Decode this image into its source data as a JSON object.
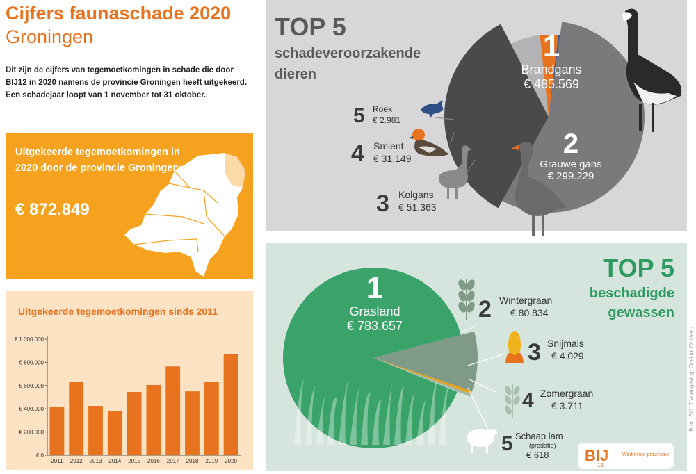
{
  "header": {
    "title": "Cijfers faunaschade 2020",
    "subtitle": "Groningen",
    "intro": "Dit zijn de cijfers van tegemoetkomingen in schade die door BIJ12 in 2020 namens de provincie Groningen heeft uitgekeerd. Een schadejaar loopt van 1 november tot 31 oktober."
  },
  "total_box": {
    "label": "Uitgekeerde tegemoetkomingen in 2020 door de provincie Groningen:",
    "amount": "€ 872.849"
  },
  "colors": {
    "orange": "#f6a21e",
    "bar_orange": "#e8731f",
    "gray_panel": "#d7d7d9",
    "green_panel": "#d5e5dd",
    "green": "#2e9a60"
  },
  "animals": {
    "title": "TOP 5",
    "subtitle_line1": "schadeveroorzakende",
    "subtitle_line2": "dieren",
    "items": [
      {
        "rank": "1",
        "name": "Brandgans",
        "value": "€ 485.569"
      },
      {
        "rank": "2",
        "name": "Grauwe gans",
        "value": "€ 299.229"
      },
      {
        "rank": "3",
        "name": "Kolgans",
        "value": "€ 51.363"
      },
      {
        "rank": "4",
        "name": "Smient",
        "value": "€ 31.149"
      },
      {
        "rank": "5",
        "name": "Roek",
        "value": "€ 2.981"
      }
    ]
  },
  "crops": {
    "title": "TOP 5",
    "subtitle_line1": "beschadigde",
    "subtitle_line2": "gewassen",
    "items": [
      {
        "rank": "1",
        "name": "Grasland",
        "value": "€ 783.657"
      },
      {
        "rank": "2",
        "name": "Wintergraan",
        "value": "€ 80.834"
      },
      {
        "rank": "3",
        "name": "Snijmais",
        "value": "€ 4.029"
      },
      {
        "rank": "4",
        "name": "Zomergraan",
        "value": "€ 3.711"
      },
      {
        "rank": "5",
        "name": "Schaap lam",
        "note": "(predatie)",
        "value": "€ 618"
      }
    ]
  },
  "logo": {
    "text": "BIJ",
    "sub": "12",
    "tagline": "Werkt voor provincies"
  },
  "credit": "Bron: BIJ12   Vormgeving: Ocel tot Ontwerp",
  "bar_chart_title": "Uitgekeerde tegemoetkomingen sinds 2011",
  "chart_data": [
    {
      "type": "bar",
      "title": "Uitgekeerde tegemoetkomingen sinds 2011",
      "categories": [
        "2011",
        "2012",
        "2013",
        "2014",
        "2015",
        "2016",
        "2017",
        "2018",
        "2019",
        "2020"
      ],
      "values": [
        415000,
        630000,
        425000,
        380000,
        545000,
        605000,
        765000,
        550000,
        630000,
        872849
      ],
      "ylim": [
        0,
        1000000
      ],
      "yticks": [
        "€ 0",
        "€ 200.000",
        "€ 400.000",
        "€ 600.000",
        "€ 800.000",
        "€ 1.000.000"
      ],
      "color": "#e8731f",
      "grid": false
    },
    {
      "type": "pie",
      "title": "TOP 5 schadeveroorzakende dieren",
      "labels": [
        "Brandgans",
        "Grauwe gans",
        "Kolgans",
        "Smient",
        "Roek"
      ],
      "values": [
        485569,
        299229,
        51363,
        31149,
        2981
      ],
      "colors": [
        "#7a7a7c",
        "#4a4a4c",
        "#b3b3b5",
        "#e8731f",
        "#3d5a8c"
      ]
    },
    {
      "type": "pie",
      "title": "TOP 5 beschadigde gewassen",
      "labels": [
        "Grasland",
        "Wintergraan",
        "Snijmais",
        "Zomergraan",
        "Schaap lam"
      ],
      "values": [
        783657,
        80834,
        4029,
        3711,
        618
      ],
      "colors": [
        "#3aa36a",
        "#7f9a86",
        "#e8a21e",
        "#9fb8a8",
        "#c9d9cf"
      ]
    }
  ]
}
